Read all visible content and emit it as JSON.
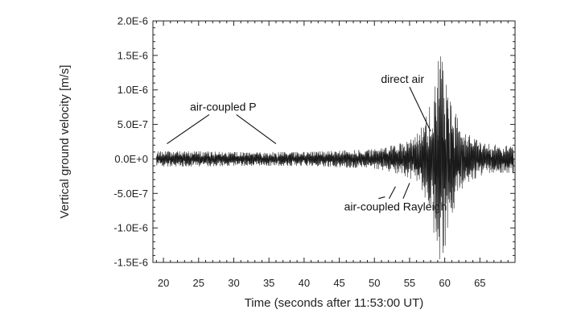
{
  "chart_data": {
    "type": "line",
    "title": "",
    "xlabel": "Time (seconds after 11:53:00 UT)",
    "ylabel": "Vertical ground velocity [m/s]",
    "xlim": [
      18.5,
      70
    ],
    "ylim": [
      -1.5e-06,
      2e-06
    ],
    "grid": false,
    "legend": "none",
    "x_ticks": [
      20,
      25,
      30,
      35,
      40,
      45,
      50,
      55,
      60,
      65
    ],
    "x_tick_labels": [
      "20",
      "25",
      "30",
      "35",
      "40",
      "45",
      "50",
      "55",
      "60",
      "65"
    ],
    "y_ticks": [
      2e-06,
      1.5e-06,
      1e-06,
      5e-07,
      0,
      -5e-07,
      -1e-06,
      -1.5e-06
    ],
    "y_tick_labels": [
      "2.0E-6",
      "1.5E-6",
      "1.0E-6",
      "5.0E-7",
      "0.0E+0",
      "-5.0E-7",
      "-1.0E-6",
      "-1.5E-6"
    ],
    "series": [
      {
        "envelope": {
          "t": [
            19,
            25,
            30,
            35,
            40,
            45,
            50,
            52,
            54,
            55,
            56,
            57,
            58,
            58.5,
            59,
            59.5,
            60,
            60.5,
            61,
            62,
            63,
            64,
            65,
            66,
            68,
            70
          ],
          "amplitude": [
            1.1e-07,
            1.1e-07,
            1e-07,
            1e-07,
            1e-07,
            1.2e-07,
            1.4e-07,
            1.8e-07,
            2.3e-07,
            2.8e-07,
            3.5e-07,
            5e-07,
            8e-07,
            1.1e-06,
            1.4e-06,
            1.5e-06,
            1.3e-06,
            1e-06,
            8e-07,
            5.5e-07,
            4e-07,
            3e-07,
            2.5e-07,
            2.2e-07,
            2e-07,
            2e-07
          ]
        }
      }
    ],
    "annotations": [
      {
        "text": "air-coupled P",
        "pointers": [
          [
            20.5,
            2.2e-07
          ],
          [
            36,
            2.2e-07
          ]
        ],
        "anchor": [
          28.5,
          7e-07
        ]
      },
      {
        "text": "direct air",
        "pointers": [
          [
            58,
            4e-07
          ]
        ],
        "anchor": [
          54,
          1.1e-06
        ]
      },
      {
        "text": "air-coupled Rayleigh",
        "pointers": [
          [
            51.5,
            -5.5e-07
          ],
          [
            53,
            -4e-07
          ],
          [
            55,
            -3.5e-07
          ]
        ],
        "anchor": [
          53,
          -7.5e-07
        ]
      }
    ]
  }
}
